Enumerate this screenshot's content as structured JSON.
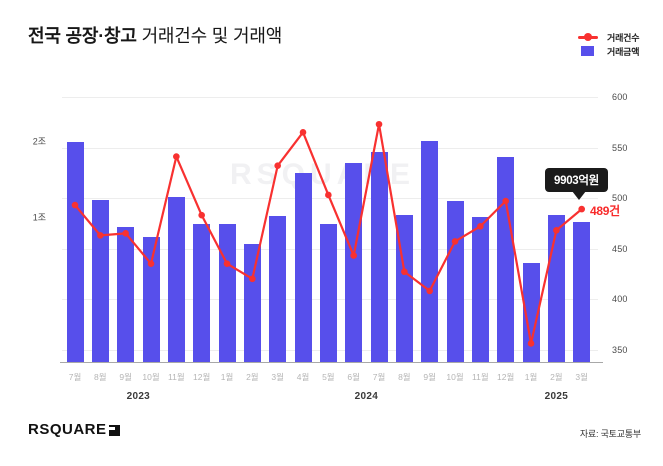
{
  "title": {
    "bold": "전국 공장·창고",
    "rest": " 거래건수 및 거래액"
  },
  "legend": {
    "count_label": "거래건수",
    "amount_label": "거래금액"
  },
  "colors": {
    "bar": "#574feb",
    "line": "#f83130",
    "tooltip_bg": "#1b1b1b",
    "count_text": "#f82a2a"
  },
  "watermark": "RSQUARE",
  "chart_data": {
    "type": "bar+line",
    "title": "전국 공장·창고 거래건수 및 거래액",
    "categories": [
      "7월",
      "8월",
      "9월",
      "10월",
      "11월",
      "12월",
      "1월",
      "2월",
      "3월",
      "4월",
      "5월",
      "6월",
      "7월",
      "8월",
      "9월",
      "10월",
      "11월",
      "12월",
      "1월",
      "2월",
      "3월"
    ],
    "year_groups": [
      {
        "label": "2023",
        "start": 0,
        "count": 6
      },
      {
        "label": "2024",
        "start": 6,
        "count": 12
      },
      {
        "label": "2025",
        "start": 18,
        "count": 3
      }
    ],
    "series": [
      {
        "name": "거래금액",
        "type": "bar",
        "unit": "억원",
        "values": [
          15550,
          11450,
          9540,
          8830,
          11660,
          9750,
          9750,
          8340,
          10340,
          13360,
          9750,
          14090,
          14860,
          10390,
          15640,
          11380,
          10230,
          14470,
          6980,
          10390,
          9903
        ]
      },
      {
        "name": "거래건수",
        "type": "line",
        "unit": "건",
        "values": [
          493,
          463,
          465,
          435,
          541,
          483,
          435,
          420,
          532,
          565,
          503,
          443,
          573,
          427,
          408,
          457,
          472,
          497,
          356,
          468,
          489
        ]
      }
    ],
    "left_axis": {
      "tick_labels": [
        "2조",
        "1조"
      ]
    },
    "right_axis": {
      "min": 350,
      "max": 600,
      "step": 50,
      "tick_labels": [
        "600",
        "550",
        "500",
        "450",
        "400",
        "350"
      ]
    },
    "grid": true,
    "legend_position": "top-right",
    "annotation": {
      "amount": "9903억원",
      "count": "489건"
    }
  },
  "footer": {
    "logo_text": "RSQUARE",
    "source": "자료: 국토교통부"
  }
}
